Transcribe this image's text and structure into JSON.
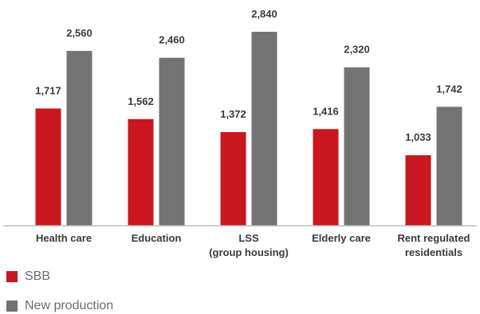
{
  "chart_data": {
    "type": "bar",
    "categories": [
      [
        "Health care"
      ],
      [
        "Education"
      ],
      [
        "LSS",
        "(group housing)"
      ],
      [
        "Elderly care"
      ],
      [
        "Rent regulated",
        "residentials"
      ]
    ],
    "series": [
      {
        "name": "SBB",
        "color": "#c8171e",
        "values": [
          1717,
          1562,
          1372,
          1416,
          1033
        ],
        "labels": [
          "1,717",
          "1,562",
          "1,372",
          "1,416",
          "1,033"
        ]
      },
      {
        "name": "New production",
        "color": "#737373",
        "values": [
          2560,
          2460,
          2840,
          2320,
          1742
        ],
        "labels": [
          "2,560",
          "2,460",
          "2,840",
          "2,320",
          "1,742"
        ]
      }
    ],
    "title": "",
    "xlabel": "",
    "ylabel": "",
    "ylim": [
      0,
      3000
    ],
    "grid": false,
    "legend_position": "bottom-left"
  }
}
